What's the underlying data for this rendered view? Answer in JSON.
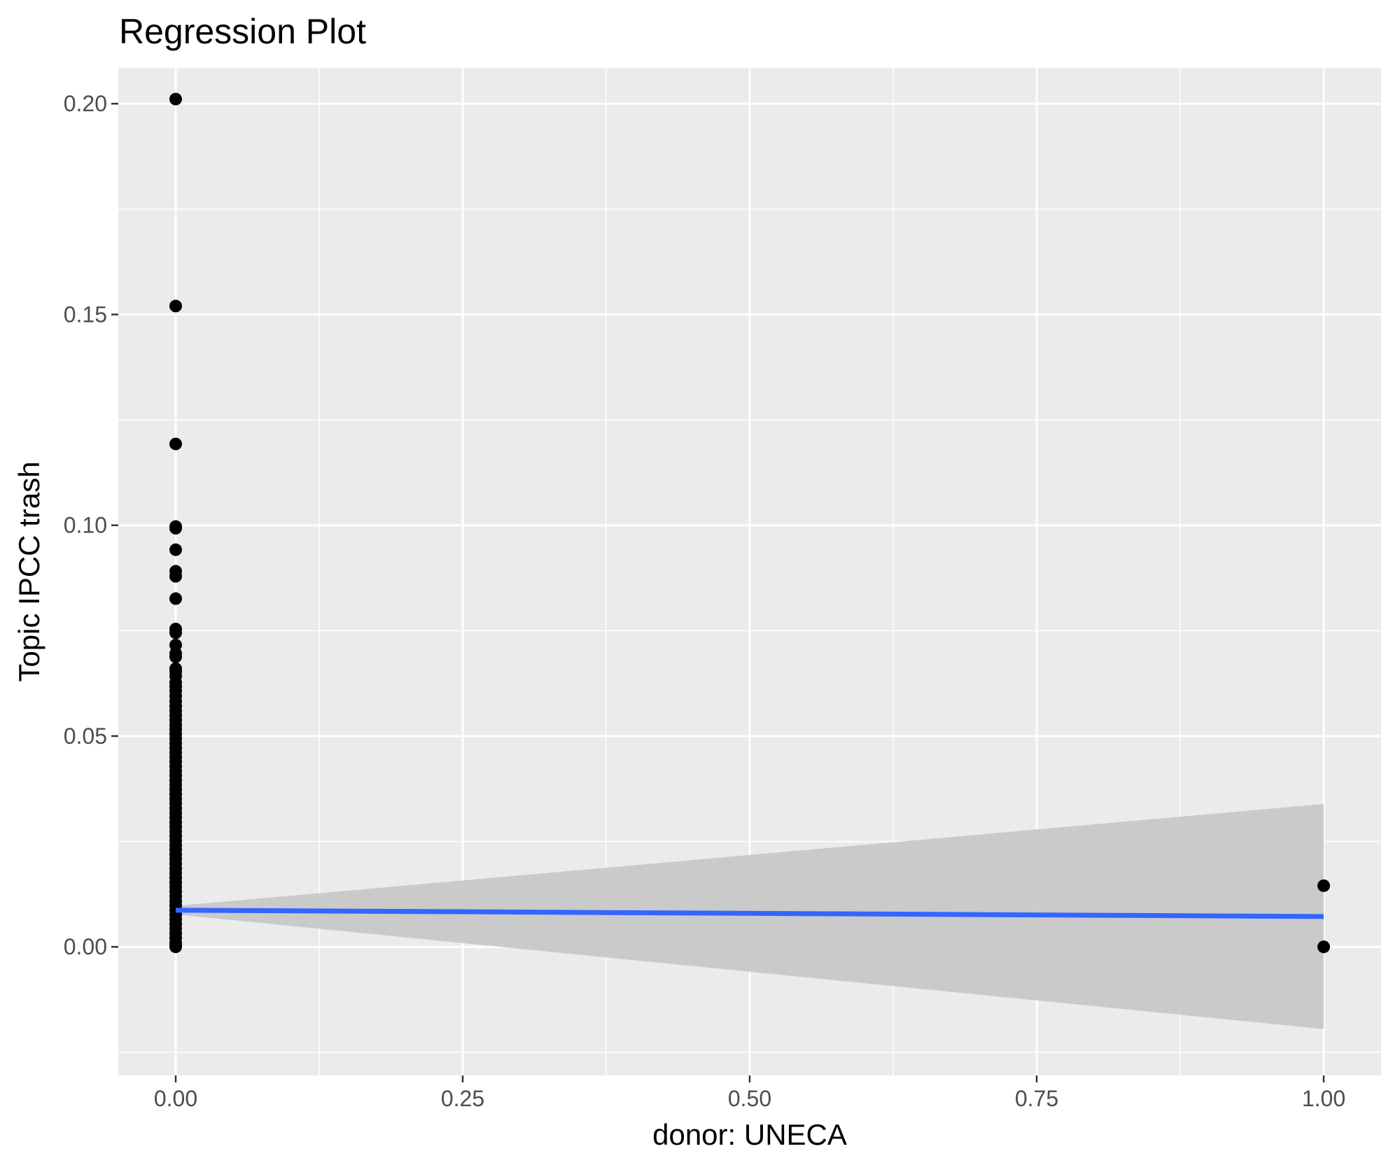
{
  "chart_data": {
    "type": "scatter",
    "title": "Regression Plot",
    "xlabel": "donor: UNECA",
    "ylabel": "Topic IPCC trash",
    "xlim": [
      -0.05,
      1.05
    ],
    "ylim": [
      -0.0305,
      0.2085
    ],
    "x_ticks": [
      0.0,
      0.25,
      0.5,
      0.75,
      1.0
    ],
    "x_tick_labels": [
      "0.00",
      "0.25",
      "0.50",
      "0.75",
      "1.00"
    ],
    "y_ticks": [
      0.0,
      0.05,
      0.1,
      0.15,
      0.2
    ],
    "y_tick_labels": [
      "0.00",
      "0.05",
      "0.10",
      "0.15",
      "0.20"
    ],
    "grid": true,
    "legend": "none",
    "series": [
      {
        "type": "points",
        "color": "#000000",
        "points": [
          [
            0,
            0.2011
          ],
          [
            0,
            0.152
          ],
          [
            0,
            0.1193
          ],
          [
            0,
            0.0997
          ],
          [
            0,
            0.0993
          ],
          [
            0,
            0.0942
          ],
          [
            0,
            0.0891
          ],
          [
            0,
            0.0879
          ],
          [
            0,
            0.0826
          ],
          [
            0,
            0.0754
          ],
          [
            0,
            0.0745
          ],
          [
            0,
            0.0716
          ],
          [
            0,
            0.0696
          ],
          [
            0,
            0.0688
          ],
          [
            0,
            0.066
          ],
          [
            0,
            0.0653
          ],
          [
            0,
            0.0642
          ],
          [
            0,
            0.0627
          ],
          [
            0,
            0.0618
          ],
          [
            0,
            0.0607
          ],
          [
            0,
            0.0595
          ],
          [
            0,
            0.0583
          ],
          [
            0,
            0.0571
          ],
          [
            0,
            0.056
          ],
          [
            0,
            0.0549
          ],
          [
            0,
            0.0538
          ],
          [
            0,
            0.0527
          ],
          [
            0,
            0.0516
          ],
          [
            0,
            0.0505
          ],
          [
            0,
            0.0494
          ],
          [
            0,
            0.0483
          ],
          [
            0,
            0.0472
          ],
          [
            0,
            0.0461
          ],
          [
            0,
            0.045
          ],
          [
            0,
            0.0439
          ],
          [
            0,
            0.0428
          ],
          [
            0,
            0.0417
          ],
          [
            0,
            0.0406
          ],
          [
            0,
            0.0395
          ],
          [
            0,
            0.0384
          ],
          [
            0,
            0.0373
          ],
          [
            0,
            0.0362
          ],
          [
            0,
            0.0351
          ],
          [
            0,
            0.034
          ],
          [
            0,
            0.0329
          ],
          [
            0,
            0.0318
          ],
          [
            0,
            0.0307
          ],
          [
            0,
            0.0296
          ],
          [
            0,
            0.0285
          ],
          [
            0,
            0.0274
          ],
          [
            0,
            0.0263
          ],
          [
            0,
            0.0252
          ],
          [
            0,
            0.0241
          ],
          [
            0,
            0.023
          ],
          [
            0,
            0.0219
          ],
          [
            0,
            0.0208
          ],
          [
            0,
            0.0197
          ],
          [
            0,
            0.0186
          ],
          [
            0,
            0.0175
          ],
          [
            0,
            0.0164
          ],
          [
            0,
            0.0153
          ],
          [
            0,
            0.0142
          ],
          [
            0,
            0.0131
          ],
          [
            0,
            0.012
          ],
          [
            0,
            0.0109
          ],
          [
            0,
            0.0098
          ],
          [
            0,
            0.0087
          ],
          [
            0,
            0.0076
          ],
          [
            0,
            0.0065
          ],
          [
            0,
            0.0054
          ],
          [
            0,
            0.0043
          ],
          [
            0,
            0.0032
          ],
          [
            0,
            0.0021
          ],
          [
            0,
            0.001
          ],
          [
            0,
            0.0004
          ],
          [
            0,
            0.0
          ],
          [
            1,
            0.0145
          ],
          [
            1,
            0.0
          ]
        ]
      },
      {
        "type": "line",
        "color": "#3366ff",
        "points": [
          [
            0,
            0.0087
          ],
          [
            1,
            0.0072
          ]
        ]
      },
      {
        "type": "ribbon",
        "color": "#c8c8c8",
        "x": [
          0,
          1
        ],
        "ymin": [
          0.0077,
          -0.0195
        ],
        "ymax": [
          0.0097,
          0.0339
        ]
      }
    ]
  }
}
